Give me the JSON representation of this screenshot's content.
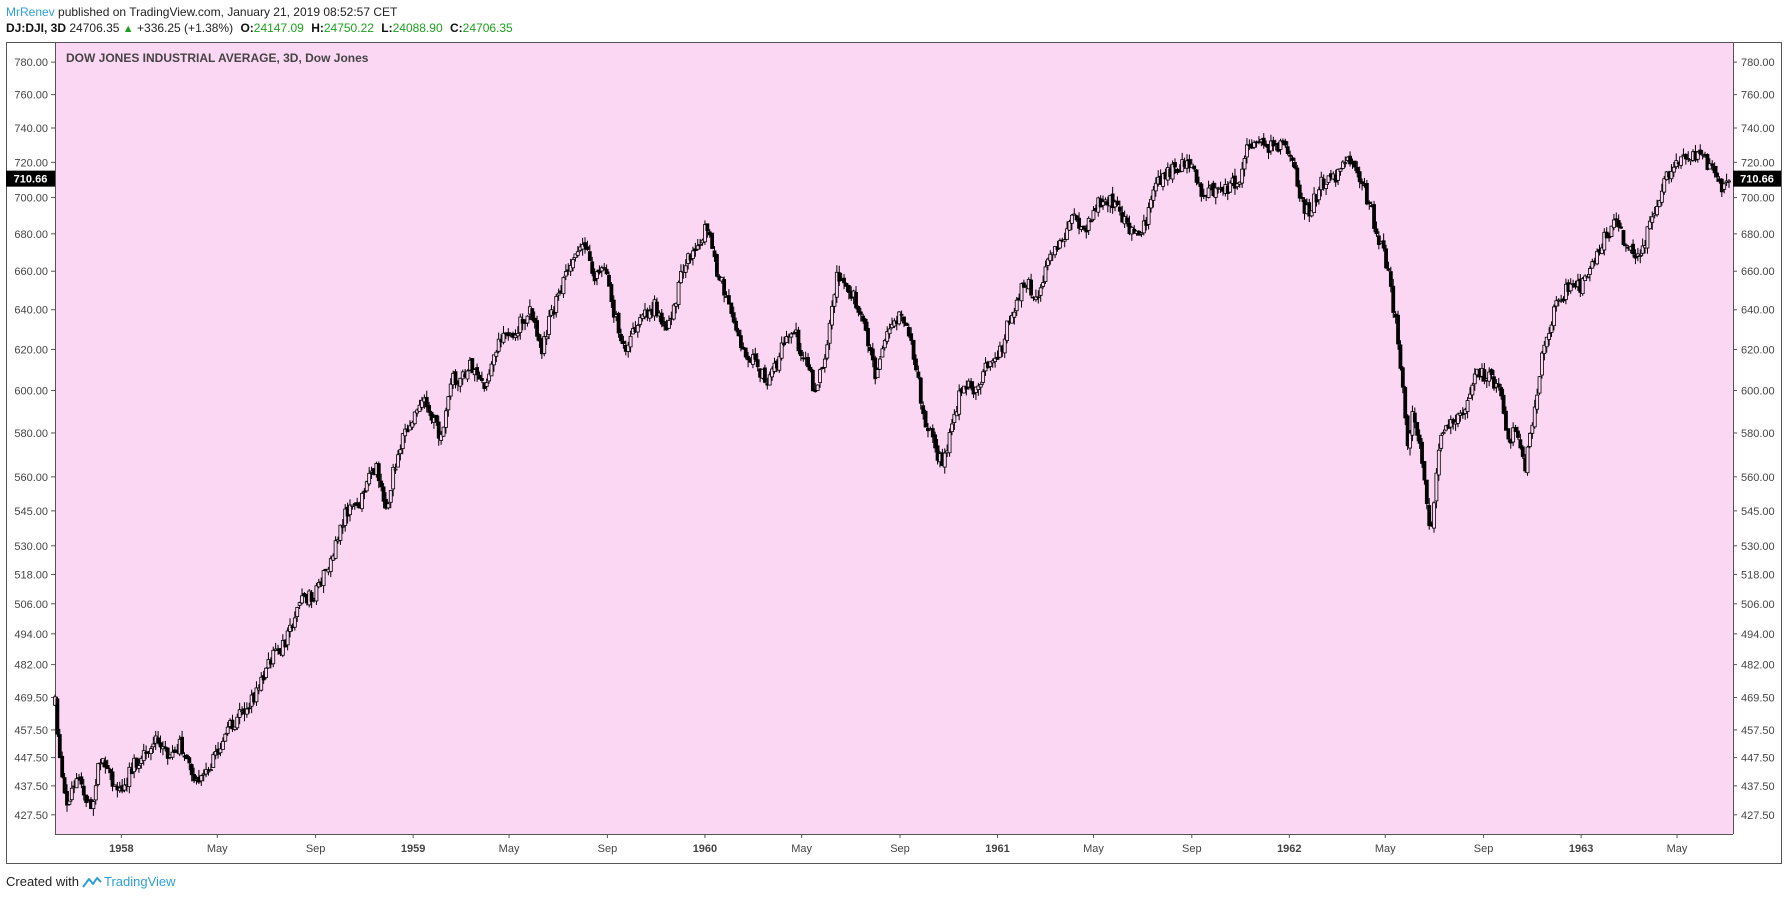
{
  "header": {
    "author": "MrRenev",
    "published_text": "published on TradingView.com, January 21, 2019 08:52:57 CET",
    "symbol": "DJ:DJI, 3D",
    "last": "24706.35",
    "change": "+336.25 (+1.38%)",
    "open_label": "O:",
    "open": "24147.09",
    "high_label": "H:",
    "high": "24750.22",
    "low_label": "L:",
    "low": "24088.90",
    "close_label": "C:",
    "close": "24706.35"
  },
  "footer": {
    "created_with": "Created with",
    "brand": "TradingView"
  },
  "colors": {
    "plot_background": "#fbd7f4",
    "candle": "#000000",
    "author": "#2e9fd6",
    "positive": "#1ea01e",
    "price_label_bg": "#000000"
  },
  "chart_data": {
    "type": "candlestick",
    "title": "DOW JONES INDUSTRIAL AVERAGE, 3D, Dow Jones",
    "scale": "log",
    "ylim": [
      421,
      792
    ],
    "y_ticks": [
      "780.00",
      "760.00",
      "740.00",
      "720.00",
      "700.00",
      "680.00",
      "660.00",
      "640.00",
      "620.00",
      "600.00",
      "580.00",
      "560.00",
      "545.00",
      "530.00",
      "518.00",
      "506.00",
      "494.00",
      "482.00",
      "469.50",
      "457.50",
      "447.50",
      "437.50",
      "427.50"
    ],
    "x_ticks": [
      "1958",
      "May",
      "Sep",
      "1959",
      "May",
      "Sep",
      "1960",
      "May",
      "Sep",
      "1961",
      "May",
      "Sep",
      "1962",
      "May",
      "Sep",
      "1963",
      "May"
    ],
    "x_tick_dates": [
      "1958-01-01",
      "1958-05-01",
      "1958-09-01",
      "1959-01-01",
      "1959-05-01",
      "1959-09-01",
      "1960-01-01",
      "1960-05-01",
      "1960-09-01",
      "1961-01-01",
      "1961-05-01",
      "1961-09-01",
      "1962-01-01",
      "1962-05-01",
      "1962-09-01",
      "1963-01-01",
      "1963-05-01"
    ],
    "x_range": [
      "1957-10-10",
      "1963-07-10"
    ],
    "last_price_label": "710.66",
    "candle_interval_days": 3,
    "close_path": [
      [
        "1957-10-10",
        467
      ],
      [
        "1957-10-18",
        440
      ],
      [
        "1957-10-24",
        430
      ],
      [
        "1957-11-06",
        440
      ],
      [
        "1957-11-25",
        430
      ],
      [
        "1957-12-06",
        448
      ],
      [
        "1957-12-20",
        440
      ],
      [
        "1957-12-31",
        435
      ],
      [
        "1958-01-15",
        444
      ],
      [
        "1958-02-01",
        450
      ],
      [
        "1958-02-15",
        455
      ],
      [
        "1958-02-28",
        448
      ],
      [
        "1958-03-15",
        452
      ],
      [
        "1958-04-07",
        438
      ],
      [
        "1958-04-20",
        443
      ],
      [
        "1958-05-10",
        456
      ],
      [
        "1958-06-01",
        465
      ],
      [
        "1958-06-20",
        472
      ],
      [
        "1958-07-10",
        485
      ],
      [
        "1958-07-25",
        490
      ],
      [
        "1958-08-10",
        506
      ],
      [
        "1958-09-01",
        510
      ],
      [
        "1958-09-20",
        525
      ],
      [
        "1958-10-10",
        545
      ],
      [
        "1958-10-25",
        548
      ],
      [
        "1958-11-15",
        565
      ],
      [
        "1958-11-28",
        546
      ],
      [
        "1958-12-15",
        575
      ],
      [
        "1958-12-31",
        585
      ],
      [
        "1959-01-15",
        597
      ],
      [
        "1959-02-05",
        578
      ],
      [
        "1959-02-20",
        605
      ],
      [
        "1959-03-15",
        612
      ],
      [
        "1959-04-01",
        602
      ],
      [
        "1959-04-20",
        628
      ],
      [
        "1959-05-10",
        630
      ],
      [
        "1959-05-28",
        640
      ],
      [
        "1959-06-10",
        620
      ],
      [
        "1959-06-25",
        640
      ],
      [
        "1959-07-15",
        660
      ],
      [
        "1959-08-01",
        678
      ],
      [
        "1959-08-15",
        658
      ],
      [
        "1959-08-28",
        660
      ],
      [
        "1959-09-15",
        630
      ],
      [
        "1959-09-25",
        622
      ],
      [
        "1959-10-10",
        635
      ],
      [
        "1959-10-30",
        642
      ],
      [
        "1959-11-15",
        628
      ],
      [
        "1959-12-01",
        655
      ],
      [
        "1959-12-20",
        675
      ],
      [
        "1960-01-05",
        683
      ],
      [
        "1960-01-15",
        660
      ],
      [
        "1960-02-01",
        645
      ],
      [
        "1960-02-15",
        622
      ],
      [
        "1960-03-01",
        615
      ],
      [
        "1960-03-20",
        602
      ],
      [
        "1960-04-05",
        620
      ],
      [
        "1960-04-20",
        630
      ],
      [
        "1960-05-05",
        615
      ],
      [
        "1960-05-18",
        600
      ],
      [
        "1960-06-01",
        620
      ],
      [
        "1960-06-15",
        660
      ],
      [
        "1960-07-01",
        650
      ],
      [
        "1960-07-20",
        630
      ],
      [
        "1960-08-01",
        605
      ],
      [
        "1960-08-15",
        625
      ],
      [
        "1960-09-01",
        640
      ],
      [
        "1960-09-15",
        625
      ],
      [
        "1960-10-01",
        588
      ],
      [
        "1960-10-15",
        572
      ],
      [
        "1960-10-25",
        566
      ],
      [
        "1960-11-05",
        585
      ],
      [
        "1960-11-20",
        605
      ],
      [
        "1960-12-05",
        600
      ],
      [
        "1960-12-20",
        612
      ],
      [
        "1961-01-05",
        620
      ],
      [
        "1961-01-20",
        640
      ],
      [
        "1961-02-05",
        655
      ],
      [
        "1961-02-20",
        645
      ],
      [
        "1961-03-05",
        665
      ],
      [
        "1961-03-20",
        675
      ],
      [
        "1961-04-05",
        690
      ],
      [
        "1961-04-20",
        682
      ],
      [
        "1961-05-05",
        698
      ],
      [
        "1961-05-20",
        700
      ],
      [
        "1961-06-05",
        690
      ],
      [
        "1961-06-20",
        680
      ],
      [
        "1961-07-05",
        685
      ],
      [
        "1961-07-20",
        710
      ],
      [
        "1961-08-05",
        715
      ],
      [
        "1961-08-20",
        720
      ],
      [
        "1961-09-01",
        720
      ],
      [
        "1961-09-15",
        700
      ],
      [
        "1961-09-30",
        705
      ],
      [
        "1961-10-15",
        705
      ],
      [
        "1961-11-01",
        710
      ],
      [
        "1961-11-10",
        728
      ],
      [
        "1961-11-25",
        730
      ],
      [
        "1961-12-10",
        728
      ],
      [
        "1961-12-25",
        730
      ],
      [
        "1962-01-05",
        722
      ],
      [
        "1962-01-15",
        700
      ],
      [
        "1962-01-25",
        690
      ],
      [
        "1962-02-10",
        708
      ],
      [
        "1962-02-25",
        710
      ],
      [
        "1962-03-15",
        720
      ],
      [
        "1962-03-25",
        718
      ],
      [
        "1962-04-05",
        705
      ],
      [
        "1962-04-15",
        690
      ],
      [
        "1962-04-25",
        675
      ],
      [
        "1962-05-05",
        660
      ],
      [
        "1962-05-15",
        630
      ],
      [
        "1962-05-25",
        590
      ],
      [
        "1962-05-28",
        575
      ],
      [
        "1962-06-05",
        590
      ],
      [
        "1962-06-15",
        568
      ],
      [
        "1962-06-26",
        535
      ],
      [
        "1962-07-10",
        580
      ],
      [
        "1962-07-25",
        585
      ],
      [
        "1962-08-10",
        590
      ],
      [
        "1962-08-25",
        610
      ],
      [
        "1962-09-10",
        605
      ],
      [
        "1962-09-20",
        600
      ],
      [
        "1962-10-01",
        578
      ],
      [
        "1962-10-15",
        580
      ],
      [
        "1962-10-23",
        565
      ],
      [
        "1962-11-01",
        585
      ],
      [
        "1962-11-15",
        620
      ],
      [
        "1962-12-01",
        645
      ],
      [
        "1962-12-15",
        650
      ],
      [
        "1962-12-31",
        652
      ],
      [
        "1963-01-15",
        665
      ],
      [
        "1963-02-01",
        680
      ],
      [
        "1963-02-15",
        685
      ],
      [
        "1963-03-01",
        672
      ],
      [
        "1963-03-15",
        668
      ],
      [
        "1963-04-01",
        690
      ],
      [
        "1963-04-15",
        710
      ],
      [
        "1963-05-01",
        718
      ],
      [
        "1963-05-15",
        722
      ],
      [
        "1963-06-01",
        724
      ],
      [
        "1963-06-15",
        715
      ],
      [
        "1963-06-28",
        706
      ],
      [
        "1963-07-05",
        710
      ]
    ]
  }
}
